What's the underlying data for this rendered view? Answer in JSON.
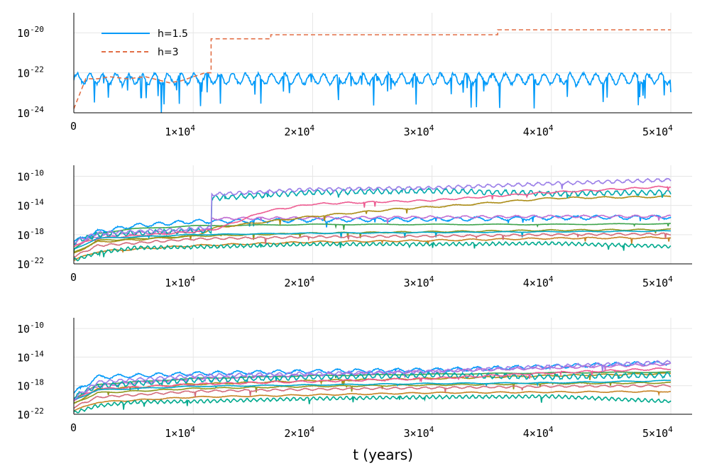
{
  "chart_data": [
    {
      "type": "line",
      "panel": "top",
      "xlabel": "",
      "ylabel": "",
      "ylog": true,
      "xlim": [
        0,
        50000
      ],
      "ylim_exp": [
        -24,
        -19
      ],
      "yticks": [
        {
          "base": "10",
          "exp": "-24",
          "v": -24
        },
        {
          "base": "10",
          "exp": "-22",
          "v": -22
        },
        {
          "base": "10",
          "exp": "-20",
          "v": -20
        }
      ],
      "xticks": [
        {
          "base": "0",
          "exp": "",
          "v": 0
        },
        {
          "base": "1×10",
          "exp": "4",
          "v": 10000
        },
        {
          "base": "2×10",
          "exp": "4",
          "v": 20000
        },
        {
          "base": "3×10",
          "exp": "4",
          "v": 30000
        },
        {
          "base": "4×10",
          "exp": "4",
          "v": 40000
        },
        {
          "base": "5×10",
          "exp": "4",
          "v": 50000
        }
      ],
      "legend": {
        "placement": "top-left",
        "entries": [
          "h=1.5",
          "h=3"
        ]
      },
      "grid": true,
      "series": [
        {
          "name": "h=1.5",
          "color": "#009af9",
          "dash": "solid",
          "style": "oscillating",
          "x": [
            0,
            50000
          ],
          "baseline_log10": [
            -22.3,
            -22.3
          ],
          "amp": 0.25,
          "dips": -1.6,
          "cycles": 46
        },
        {
          "name": "h=3",
          "color": "#e26f46",
          "dash": "dashed",
          "style": "steps",
          "x": [
            0,
            1000,
            2000,
            3000,
            4500,
            6000,
            8000,
            9000,
            10000,
            11000,
            11500,
            11500,
            16500,
            16500,
            35500,
            35500,
            50000
          ],
          "log10": [
            -23.8,
            -22.3,
            -22.3,
            -22.2,
            -22.3,
            -22.2,
            -22.5,
            -22.4,
            -22.2,
            -22.0,
            -22.0,
            -20.3,
            -20.3,
            -20.1,
            -20.1,
            -19.85,
            -19.85
          ]
        }
      ]
    },
    {
      "type": "line",
      "panel": "middle",
      "xlabel": "",
      "ylabel": "",
      "ylog": true,
      "xlim": [
        0,
        50000
      ],
      "ylim_exp": [
        -22,
        -8.5
      ],
      "yticks": [
        {
          "base": "10",
          "exp": "-22",
          "v": -22
        },
        {
          "base": "10",
          "exp": "-18",
          "v": -18
        },
        {
          "base": "10",
          "exp": "-14",
          "v": -14
        },
        {
          "base": "10",
          "exp": "-10",
          "v": -10
        }
      ],
      "xticks": [
        {
          "base": "0",
          "exp": "",
          "v": 0
        },
        {
          "base": "1×10",
          "exp": "4",
          "v": 10000
        },
        {
          "base": "2×10",
          "exp": "4",
          "v": 20000
        },
        {
          "base": "3×10",
          "exp": "4",
          "v": 30000
        },
        {
          "base": "4×10",
          "exp": "4",
          "v": 40000
        },
        {
          "base": "5×10",
          "exp": "4",
          "v": 50000
        }
      ],
      "grid": true,
      "series": [
        {
          "color": "#009af9",
          "x": [
            0,
            2000,
            5000,
            10000,
            20000,
            30000,
            40000,
            50000
          ],
          "log10": [
            -19.0,
            -17.6,
            -16.8,
            -16.2,
            -16.0,
            -15.9,
            -15.7,
            -15.6
          ],
          "amp": 0.25,
          "cycles": 30
        },
        {
          "color": "#3da44d",
          "x": [
            0,
            2000,
            5000,
            10000,
            20000,
            30000,
            40000,
            50000
          ],
          "log10": [
            -20.0,
            -17.8,
            -17.2,
            -16.8,
            -16.6,
            -16.6,
            -16.6,
            -16.5
          ],
          "amp": 0.05,
          "cycles": 10
        },
        {
          "color": "#c271d2",
          "x": [
            0,
            2000,
            5000,
            10000,
            11500,
            11500,
            20000,
            30000,
            40000,
            50000
          ],
          "log10": [
            -19.5,
            -18.2,
            -17.8,
            -17.5,
            -17.3,
            -15.8,
            -15.7,
            -15.6,
            -15.5,
            -15.5
          ],
          "amp": 0.15,
          "cycles": 35
        },
        {
          "color": "#ac8d18",
          "x": [
            0,
            2000,
            10000,
            12000,
            20000,
            27000,
            32000,
            40000,
            50000
          ],
          "log10": [
            -20.5,
            -19.0,
            -18.2,
            -17.0,
            -15.5,
            -14.5,
            -14.0,
            -13.0,
            -12.8
          ],
          "amp": 0.1,
          "cycles": 20
        },
        {
          "color": "#00a9ad",
          "x": [
            0,
            2000,
            10000,
            11500,
            11500,
            20000,
            30000,
            38000,
            40000,
            50000
          ],
          "log10": [
            -19.0,
            -18.0,
            -17.5,
            -17.5,
            -13.0,
            -12.2,
            -12.0,
            -12.3,
            -12.4,
            -12.2
          ],
          "amp": 0.3,
          "cycles": 70
        },
        {
          "color": "#ed5d92",
          "x": [
            0,
            2000,
            10000,
            12000,
            16000,
            20000,
            30000,
            40000,
            50000
          ],
          "log10": [
            -19.5,
            -18.5,
            -17.6,
            -17.2,
            -14.8,
            -13.8,
            -13.3,
            -12.2,
            -11.4
          ],
          "amp": 0.1,
          "cycles": 25
        },
        {
          "color": "#c68225",
          "x": [
            0,
            2000,
            10000,
            20000,
            30000,
            40000,
            50000
          ],
          "log10": [
            -21.5,
            -20.3,
            -19.5,
            -19.0,
            -18.8,
            -18.5,
            -18.4
          ],
          "amp": 0.1,
          "cycles": 20
        },
        {
          "color": "#00a98d",
          "x": [
            0,
            2000,
            5000,
            10000,
            20000,
            30000,
            40000,
            50000
          ],
          "log10": [
            -21.5,
            -20.5,
            -19.8,
            -19.7,
            -19.3,
            -19.3,
            -19.2,
            -19.6
          ],
          "amp": 0.2,
          "cycles": 90
        },
        {
          "color": "#8e971e",
          "x": [
            0,
            2000,
            10000,
            20000,
            30000,
            40000,
            50000
          ],
          "log10": [
            -20.5,
            -18.8,
            -18.2,
            -17.8,
            -17.6,
            -17.4,
            -17.3
          ],
          "amp": 0.08,
          "cycles": 20
        },
        {
          "color": "#00a8cb",
          "x": [
            0,
            2000,
            10000,
            20000,
            30000,
            40000,
            50000
          ],
          "log10": [
            -20.0,
            -18.5,
            -18.0,
            -17.8,
            -17.7,
            -17.6,
            -17.5
          ],
          "amp": 0.05,
          "cycles": 15
        },
        {
          "color": "#9b7fe8",
          "x": [
            0,
            2000,
            10000,
            11500,
            11500,
            20000,
            30000,
            40000,
            50000
          ],
          "log10": [
            -19.0,
            -17.8,
            -17.2,
            -17.0,
            -12.5,
            -11.8,
            -11.6,
            -11.0,
            -10.5
          ],
          "amp": 0.2,
          "cycles": 60
        },
        {
          "color": "#d36b7a",
          "x": [
            0,
            2000,
            10000,
            20000,
            30000,
            40000,
            50000
          ],
          "log10": [
            -21.0,
            -19.5,
            -18.6,
            -18.3,
            -18.2,
            -18.0,
            -17.9
          ],
          "amp": 0.12,
          "cycles": 40
        }
      ]
    },
    {
      "type": "line",
      "panel": "bottom",
      "xlabel": "t (years)",
      "ylabel": "",
      "ylog": true,
      "xlim": [
        0,
        50000
      ],
      "ylim_exp": [
        -22,
        -8.5
      ],
      "yticks": [
        {
          "base": "10",
          "exp": "-22",
          "v": -22
        },
        {
          "base": "10",
          "exp": "-18",
          "v": -18
        },
        {
          "base": "10",
          "exp": "-14",
          "v": -14
        },
        {
          "base": "10",
          "exp": "-10",
          "v": -10
        }
      ],
      "xticks": [
        {
          "base": "0",
          "exp": "",
          "v": 0
        },
        {
          "base": "1×10",
          "exp": "4",
          "v": 10000
        },
        {
          "base": "2×10",
          "exp": "4",
          "v": 20000
        },
        {
          "base": "3×10",
          "exp": "4",
          "v": 30000
        },
        {
          "base": "4×10",
          "exp": "4",
          "v": 40000
        },
        {
          "base": "5×10",
          "exp": "4",
          "v": 50000
        }
      ],
      "grid": true,
      "series": [
        {
          "color": "#009af9",
          "x": [
            0,
            2000,
            10000,
            20000,
            30000,
            40000,
            50000
          ],
          "log10": [
            -19.0,
            -16.8,
            -16.3,
            -16.0,
            -15.8,
            -15.3,
            -14.8
          ],
          "amp": 0.25,
          "cycles": 30
        },
        {
          "color": "#3da44d",
          "x": [
            0,
            2000,
            10000,
            20000,
            30000,
            40000,
            50000
          ],
          "log10": [
            -20.0,
            -17.8,
            -17.0,
            -16.6,
            -16.4,
            -16.2,
            -16.1
          ],
          "amp": 0.05,
          "cycles": 10
        },
        {
          "color": "#c271d2",
          "x": [
            0,
            2000,
            10000,
            20000,
            30000,
            40000,
            50000
          ],
          "log10": [
            -20.0,
            -18.0,
            -17.0,
            -16.5,
            -16.0,
            -15.5,
            -15.0
          ],
          "amp": 0.15,
          "cycles": 35
        },
        {
          "color": "#ac8d18",
          "x": [
            0,
            2000,
            10000,
            20000,
            30000,
            40000,
            50000
          ],
          "log10": [
            -20.5,
            -18.5,
            -17.8,
            -17.3,
            -17.0,
            -16.6,
            -16.3
          ],
          "amp": 0.1,
          "cycles": 20
        },
        {
          "color": "#00a9ad",
          "x": [
            0,
            2000,
            10000,
            20000,
            30000,
            40000,
            50000
          ],
          "log10": [
            -19.5,
            -18.0,
            -17.2,
            -16.8,
            -16.5,
            -16.8,
            -16.5
          ],
          "amp": 0.3,
          "cycles": 70
        },
        {
          "color": "#ed5d92",
          "x": [
            0,
            2000,
            10000,
            20000,
            30000,
            40000,
            50000
          ],
          "log10": [
            -20.0,
            -18.5,
            -17.8,
            -17.4,
            -17.0,
            -16.2,
            -15.6
          ],
          "amp": 0.12,
          "cycles": 25
        },
        {
          "color": "#c68225",
          "x": [
            0,
            2000,
            10000,
            20000,
            30000,
            40000,
            50000
          ],
          "log10": [
            -21.5,
            -20.3,
            -19.6,
            -19.3,
            -19.0,
            -18.9,
            -18.8
          ],
          "amp": 0.08,
          "cycles": 20
        },
        {
          "color": "#00a98d",
          "x": [
            0,
            2000,
            5000,
            10000,
            20000,
            30000,
            40000,
            50000
          ],
          "log10": [
            -21.8,
            -20.8,
            -20.3,
            -20.2,
            -19.8,
            -19.6,
            -19.5,
            -20.2
          ],
          "amp": 0.2,
          "cycles": 90
        },
        {
          "color": "#8e971e",
          "x": [
            0,
            2000,
            10000,
            20000,
            30000,
            40000,
            50000
          ],
          "log10": [
            -20.5,
            -19.0,
            -18.4,
            -18.1,
            -17.9,
            -17.7,
            -17.6
          ],
          "amp": 0.08,
          "cycles": 20
        },
        {
          "color": "#00a8cb",
          "x": [
            0,
            2000,
            10000,
            20000,
            30000,
            40000,
            50000
          ],
          "log10": [
            -20.0,
            -18.6,
            -18.1,
            -17.9,
            -17.7,
            -17.6,
            -17.3
          ],
          "amp": 0.06,
          "cycles": 15
        },
        {
          "color": "#9b7fe8",
          "x": [
            0,
            2000,
            10000,
            20000,
            30000,
            40000,
            50000
          ],
          "log10": [
            -19.8,
            -17.5,
            -16.6,
            -16.3,
            -16.0,
            -15.3,
            -14.7
          ],
          "amp": 0.2,
          "cycles": 60
        },
        {
          "color": "#d36b7a",
          "x": [
            0,
            2000,
            10000,
            20000,
            30000,
            40000,
            50000
          ],
          "log10": [
            -21.0,
            -19.6,
            -18.8,
            -18.5,
            -18.3,
            -18.1,
            -18.0
          ],
          "amp": 0.12,
          "cycles": 40
        }
      ]
    }
  ]
}
